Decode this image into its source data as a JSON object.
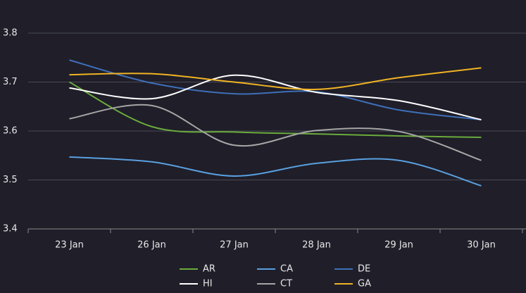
{
  "chart_data": {
    "type": "line",
    "categories": [
      "23 Jan",
      "26 Jan",
      "27 Jan",
      "28 Jan",
      "29 Jan",
      "30 Jan"
    ],
    "series": [
      {
        "name": "AR",
        "color": "#6aab3c",
        "values": [
          3.7,
          3.609,
          3.598,
          3.594,
          3.59,
          3.587
        ]
      },
      {
        "name": "CA",
        "color": "#5aa0e0",
        "values": [
          3.547,
          3.537,
          3.508,
          3.534,
          3.54,
          3.488
        ]
      },
      {
        "name": "DE",
        "color": "#3f6fb8",
        "values": [
          3.745,
          3.698,
          3.676,
          3.68,
          3.643,
          3.623
        ]
      },
      {
        "name": "HI",
        "color": "#ffffff",
        "values": [
          3.688,
          3.666,
          3.714,
          3.679,
          3.662,
          3.623
        ]
      },
      {
        "name": "CT",
        "color": "#a6a6a6",
        "values": [
          3.625,
          3.652,
          3.571,
          3.601,
          3.599,
          3.54
        ]
      },
      {
        "name": "GA",
        "color": "#f0b323",
        "values": [
          3.715,
          3.717,
          3.7,
          3.685,
          3.709,
          3.729
        ]
      }
    ],
    "ylim": [
      3.4,
      3.8
    ],
    "yticks": [
      3.4,
      3.5,
      3.6,
      3.7,
      3.8
    ],
    "grid": true
  }
}
